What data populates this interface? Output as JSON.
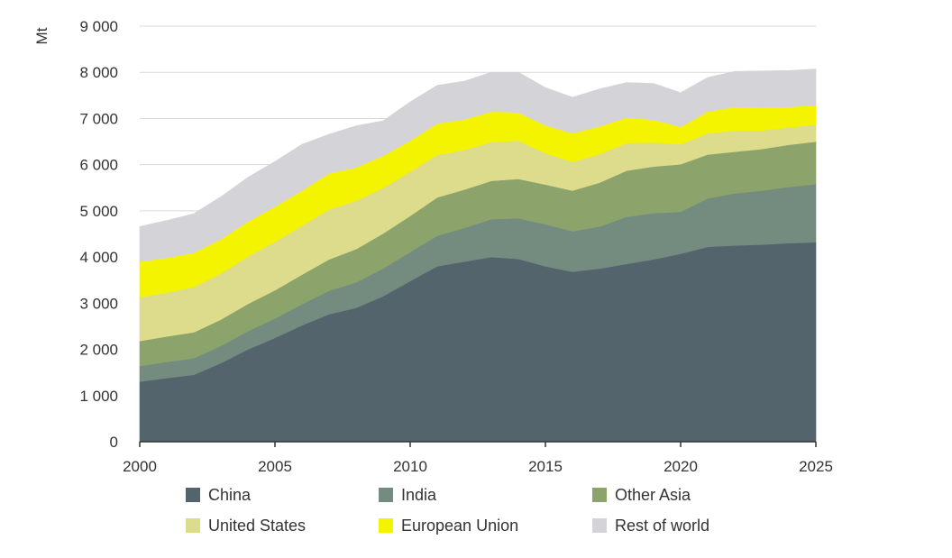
{
  "chart_data": {
    "type": "area",
    "stacked": true,
    "title": "",
    "xlabel": "",
    "ylabel": "Mt",
    "ylim": [
      0,
      9000
    ],
    "xlim": [
      2000,
      2025
    ],
    "grid": true,
    "legend_position": "bottom",
    "y_ticks": [
      0,
      1000,
      2000,
      3000,
      4000,
      5000,
      6000,
      7000,
      8000,
      9000
    ],
    "y_tick_labels": [
      "0",
      "1 000",
      "2 000",
      "3 000",
      "4 000",
      "5 000",
      "6 000",
      "7 000",
      "8 000",
      "9 000"
    ],
    "x_ticks": [
      2000,
      2005,
      2010,
      2015,
      2020,
      2025
    ],
    "x_tick_labels": [
      "2000",
      "2005",
      "2010",
      "2015",
      "2020",
      "2025"
    ],
    "x": [
      2000,
      2001,
      2002,
      2003,
      2004,
      2005,
      2006,
      2007,
      2008,
      2009,
      2010,
      2011,
      2012,
      2013,
      2014,
      2015,
      2016,
      2017,
      2018,
      2019,
      2020,
      2021,
      2022,
      2023,
      2024,
      2025
    ],
    "series": [
      {
        "name": "China",
        "color": "#54646c",
        "values": [
          1300,
          1380,
          1450,
          1700,
          2000,
          2250,
          2520,
          2760,
          2900,
          3150,
          3480,
          3800,
          3900,
          4000,
          3960,
          3800,
          3680,
          3750,
          3850,
          3950,
          4070,
          4220,
          4250,
          4270,
          4300,
          4320
        ]
      },
      {
        "name": "India",
        "color": "#748c80",
        "values": [
          340,
          350,
          360,
          375,
          395,
          420,
          460,
          510,
          550,
          600,
          630,
          660,
          730,
          820,
          880,
          910,
          880,
          910,
          1020,
          1000,
          910,
          1050,
          1130,
          1170,
          1220,
          1260
        ]
      },
      {
        "name": "Other Asia",
        "color": "#8ca46c",
        "values": [
          540,
          550,
          560,
          570,
          590,
          610,
          640,
          680,
          720,
          760,
          780,
          830,
          830,
          830,
          850,
          860,
          880,
          950,
          1000,
          1010,
          1030,
          950,
          900,
          900,
          910,
          920
        ]
      },
      {
        "name": "United States",
        "color": "#dcdc8c",
        "values": [
          950,
          950,
          980,
          1000,
          1030,
          1050,
          1060,
          1080,
          1050,
          990,
          960,
          920,
          860,
          840,
          830,
          680,
          620,
          620,
          600,
          520,
          430,
          460,
          460,
          400,
          380,
          370
        ]
      },
      {
        "name": "European Union",
        "color": "#f4f400",
        "values": [
          770,
          750,
          740,
          740,
          750,
          760,
          760,
          780,
          720,
          690,
          670,
          680,
          660,
          660,
          610,
          600,
          620,
          600,
          550,
          490,
          380,
          470,
          510,
          500,
          440,
          420
        ]
      },
      {
        "name": "Rest of world",
        "color": "#d4d4d8",
        "values": [
          760,
          810,
          850,
          920,
          960,
          980,
          1000,
          850,
          900,
          760,
          840,
          830,
          830,
          850,
          870,
          820,
          780,
          810,
          760,
          790,
          740,
          740,
          770,
          790,
          790,
          780
        ]
      }
    ]
  }
}
